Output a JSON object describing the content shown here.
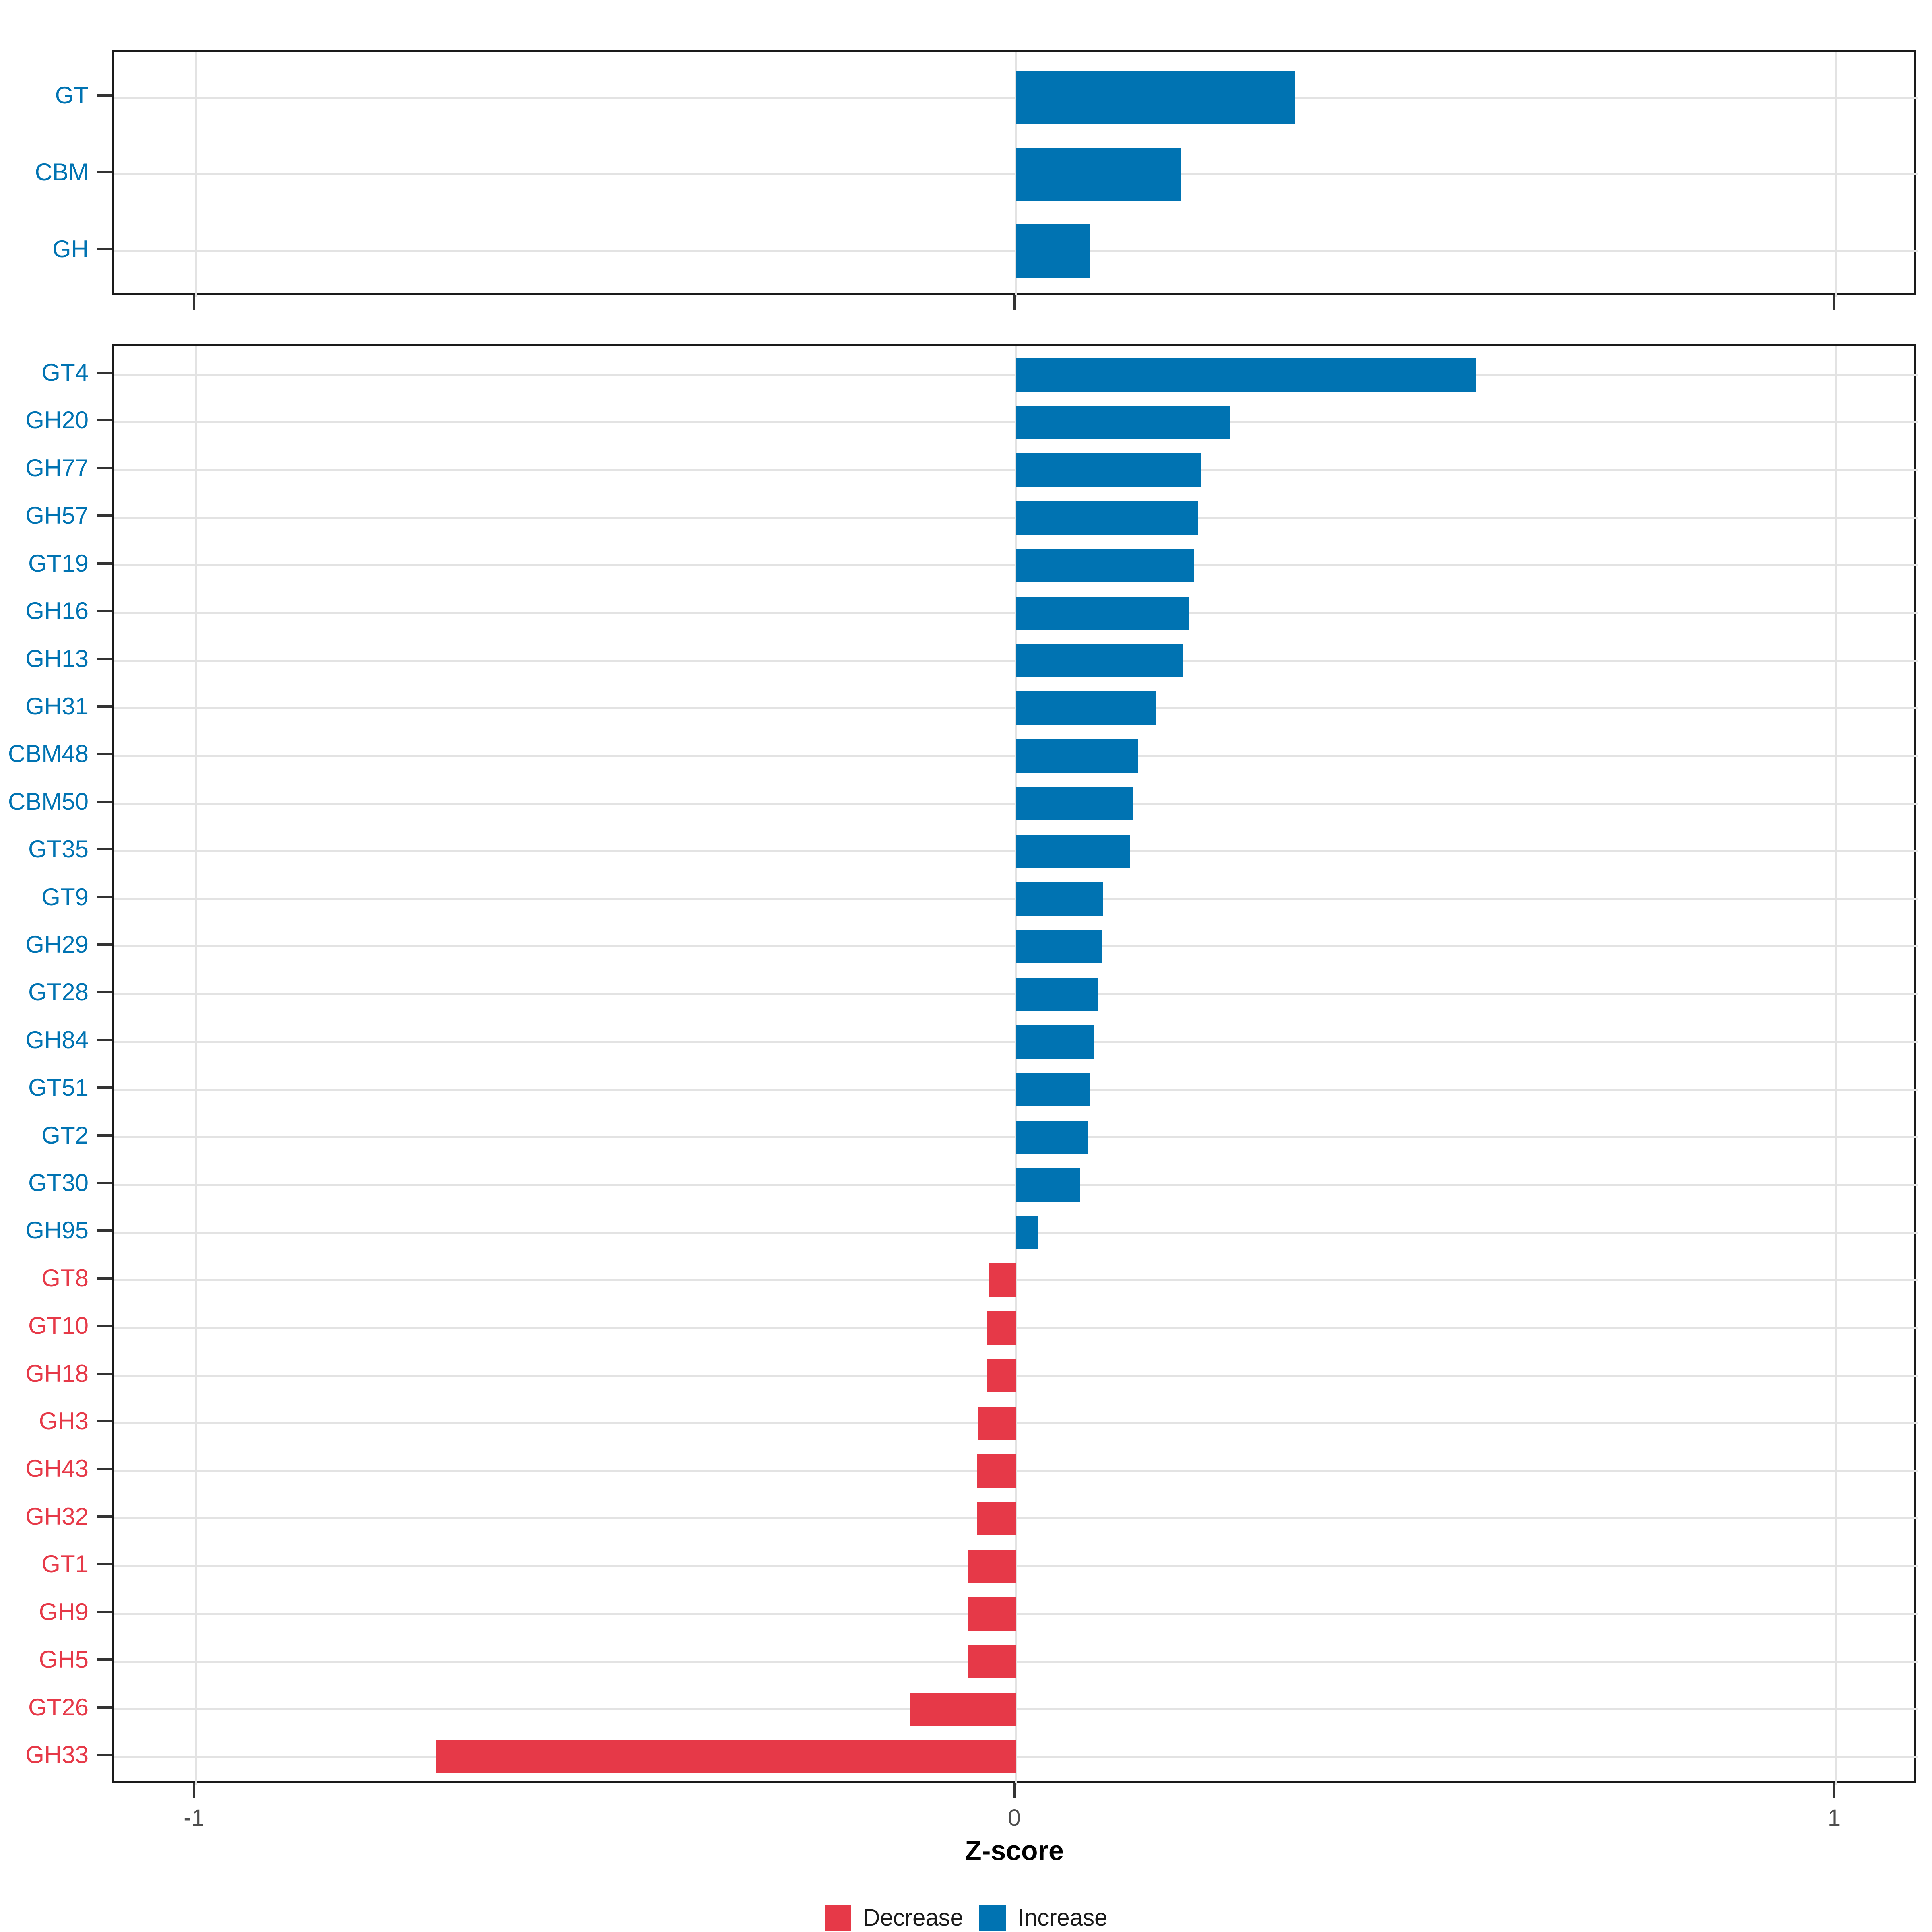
{
  "figure": {
    "xlabel": "Z-score",
    "x_ticks": [
      "-1",
      "0",
      "1"
    ],
    "x_tick_values": [
      -1,
      0,
      1
    ],
    "x_range": [
      -1.1,
      1.1
    ],
    "colors": {
      "increase": "#0073b2",
      "decrease": "#e63948",
      "grid": "#e3e3e3",
      "axis_text": "#4d4d4d",
      "panel_border": "#1a1a1a"
    },
    "legend": {
      "decrease_label": "Decrease",
      "increase_label": "Increase"
    }
  },
  "chart_data": [
    {
      "type": "bar",
      "orientation": "horizontal",
      "panel": "top",
      "title": "",
      "categories": [
        "GT",
        "CBM",
        "GH"
      ],
      "values": [
        0.34,
        0.2,
        0.09
      ],
      "xlim": [
        -1.1,
        1.1
      ],
      "grid": true,
      "legend_position": "none"
    },
    {
      "type": "bar",
      "orientation": "horizontal",
      "panel": "bottom",
      "title": "",
      "categories": [
        "GT4",
        "GH20",
        "GH77",
        "GH57",
        "GT19",
        "GH16",
        "GH13",
        "GH31",
        "CBM48",
        "CBM50",
        "GT35",
        "GT9",
        "GH29",
        "GT28",
        "GH84",
        "GT51",
        "GT2",
        "GT30",
        "GH95",
        "GT8",
        "GT10",
        "GH18",
        "GH3",
        "GH43",
        "GH32",
        "GT1",
        "GH9",
        "GH5",
        "GT26",
        "GH33"
      ],
      "values": [
        0.56,
        0.26,
        0.225,
        0.222,
        0.217,
        0.21,
        0.203,
        0.17,
        0.148,
        0.142,
        0.139,
        0.106,
        0.105,
        0.099,
        0.095,
        0.09,
        0.087,
        0.078,
        0.027,
        -0.033,
        -0.035,
        -0.035,
        -0.046,
        -0.048,
        -0.048,
        -0.059,
        -0.059,
        -0.059,
        -0.129,
        -0.707
      ],
      "xlim": [
        -1.1,
        1.1
      ],
      "grid": true,
      "legend_position": "bottom"
    }
  ]
}
